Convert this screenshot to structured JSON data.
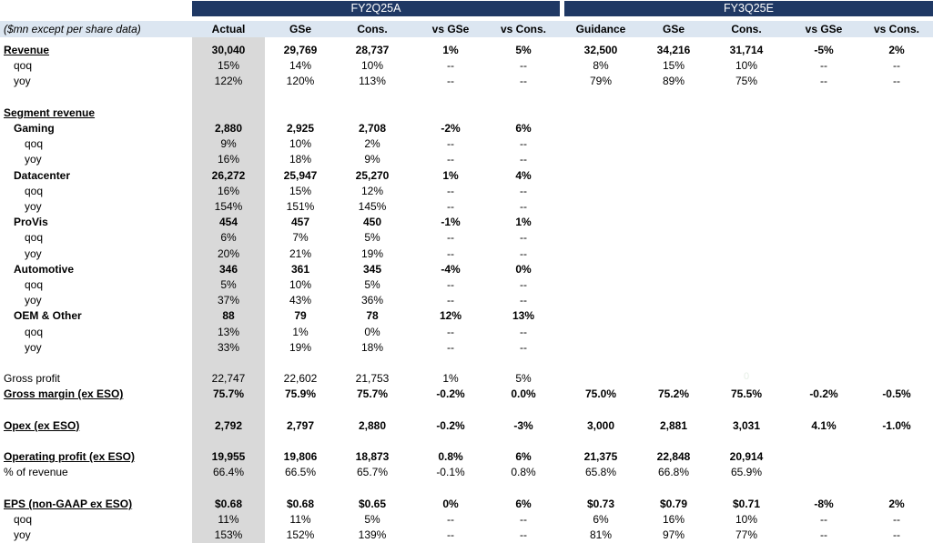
{
  "groups": {
    "current": "FY2Q25A",
    "next": "FY3Q25E"
  },
  "header": {
    "label": "($mn except per share data)",
    "cols": [
      "Actual",
      "GSe",
      "Cons.",
      "vs GSe",
      "vs Cons.",
      "Guidance",
      "GSe",
      "Cons.",
      "vs GSe",
      "vs Cons."
    ]
  },
  "faint_text": "0",
  "rows": [
    {
      "label": "Revenue",
      "style": "bu",
      "vals": [
        "30,040",
        "29,769",
        "28,737",
        "1%",
        "5%",
        "32,500",
        "34,216",
        "31,714",
        "-5%",
        "2%"
      ]
    },
    {
      "label": "qoq",
      "style": "i1",
      "vals": [
        "15%",
        "14%",
        "10%",
        "--",
        "--",
        "8%",
        "15%",
        "10%",
        "--",
        "--"
      ]
    },
    {
      "label": "yoy",
      "style": "i1",
      "vals": [
        "122%",
        "120%",
        "113%",
        "--",
        "--",
        "79%",
        "89%",
        "75%",
        "--",
        "--"
      ]
    },
    {
      "label": "",
      "style": "blank",
      "vals": []
    },
    {
      "label": "Segment revenue",
      "style": "bu",
      "vals": []
    },
    {
      "label": "Gaming",
      "style": "b1",
      "vals": [
        "2,880",
        "2,925",
        "2,708",
        "-2%",
        "6%"
      ]
    },
    {
      "label": "qoq",
      "style": "i2",
      "vals": [
        "9%",
        "10%",
        "2%",
        "--",
        "--"
      ]
    },
    {
      "label": "yoy",
      "style": "i2",
      "vals": [
        "16%",
        "18%",
        "9%",
        "--",
        "--"
      ]
    },
    {
      "label": "Datacenter",
      "style": "b1",
      "vals": [
        "26,272",
        "25,947",
        "25,270",
        "1%",
        "4%"
      ]
    },
    {
      "label": "qoq",
      "style": "i2",
      "vals": [
        "16%",
        "15%",
        "12%",
        "--",
        "--"
      ]
    },
    {
      "label": "yoy",
      "style": "i2",
      "vals": [
        "154%",
        "151%",
        "145%",
        "--",
        "--"
      ]
    },
    {
      "label": "ProVis",
      "style": "b1",
      "vals": [
        "454",
        "457",
        "450",
        "-1%",
        "1%"
      ]
    },
    {
      "label": "qoq",
      "style": "i2",
      "vals": [
        "6%",
        "7%",
        "5%",
        "--",
        "--"
      ]
    },
    {
      "label": "yoy",
      "style": "i2",
      "vals": [
        "20%",
        "21%",
        "19%",
        "--",
        "--"
      ]
    },
    {
      "label": "Automotive",
      "style": "b1",
      "vals": [
        "346",
        "361",
        "345",
        "-4%",
        "0%"
      ]
    },
    {
      "label": "qoq",
      "style": "i2",
      "vals": [
        "5%",
        "10%",
        "5%",
        "--",
        "--"
      ]
    },
    {
      "label": "yoy",
      "style": "i2",
      "vals": [
        "37%",
        "43%",
        "36%",
        "--",
        "--"
      ]
    },
    {
      "label": "OEM & Other",
      "style": "b1",
      "vals": [
        "88",
        "79",
        "78",
        "12%",
        "13%"
      ]
    },
    {
      "label": "qoq",
      "style": "i2",
      "vals": [
        "13%",
        "1%",
        "0%",
        "--",
        "--"
      ]
    },
    {
      "label": "yoy",
      "style": "i2",
      "vals": [
        "33%",
        "19%",
        "18%",
        "--",
        "--"
      ]
    },
    {
      "label": "",
      "style": "blank",
      "vals": []
    },
    {
      "label": "Gross profit",
      "style": "n",
      "vals": [
        "22,747",
        "22,602",
        "21,753",
        "1%",
        "5%"
      ]
    },
    {
      "label": "Gross margin (ex ESO)",
      "style": "bu",
      "vals": [
        "75.7%",
        "75.9%",
        "75.7%",
        "-0.2%",
        "0.0%",
        "75.0%",
        "75.2%",
        "75.5%",
        "-0.2%",
        "-0.5%"
      ]
    },
    {
      "label": "",
      "style": "blank",
      "vals": []
    },
    {
      "label": "Opex (ex ESO)",
      "style": "bu",
      "vals": [
        "2,792",
        "2,797",
        "2,880",
        "-0.2%",
        "-3%",
        "3,000",
        "2,881",
        "3,031",
        "4.1%",
        "-1.0%"
      ]
    },
    {
      "label": "",
      "style": "blank",
      "vals": []
    },
    {
      "label": "Operating profit (ex ESO)",
      "style": "bu",
      "vals": [
        "19,955",
        "19,806",
        "18,873",
        "0.8%",
        "6%",
        "21,375",
        "22,848",
        "20,914"
      ]
    },
    {
      "label": "% of revenue",
      "style": "n",
      "vals": [
        "66.4%",
        "66.5%",
        "65.7%",
        "-0.1%",
        "0.8%",
        "65.8%",
        "66.8%",
        "65.9%"
      ]
    },
    {
      "label": "",
      "style": "blank",
      "vals": []
    },
    {
      "label": "EPS (non-GAAP ex ESO)",
      "style": "bu",
      "vals": [
        "$0.68",
        "$0.68",
        "$0.65",
        "0%",
        "6%",
        "$0.73",
        "$0.79",
        "$0.71",
        "-8%",
        "2%"
      ]
    },
    {
      "label": "qoq",
      "style": "i1",
      "vals": [
        "11%",
        "11%",
        "5%",
        "--",
        "--",
        "6%",
        "16%",
        "10%",
        "--",
        "--"
      ]
    },
    {
      "label": "yoy",
      "style": "i1",
      "vals": [
        "153%",
        "152%",
        "139%",
        "--",
        "--",
        "81%",
        "97%",
        "77%",
        "--",
        "--"
      ]
    }
  ]
}
